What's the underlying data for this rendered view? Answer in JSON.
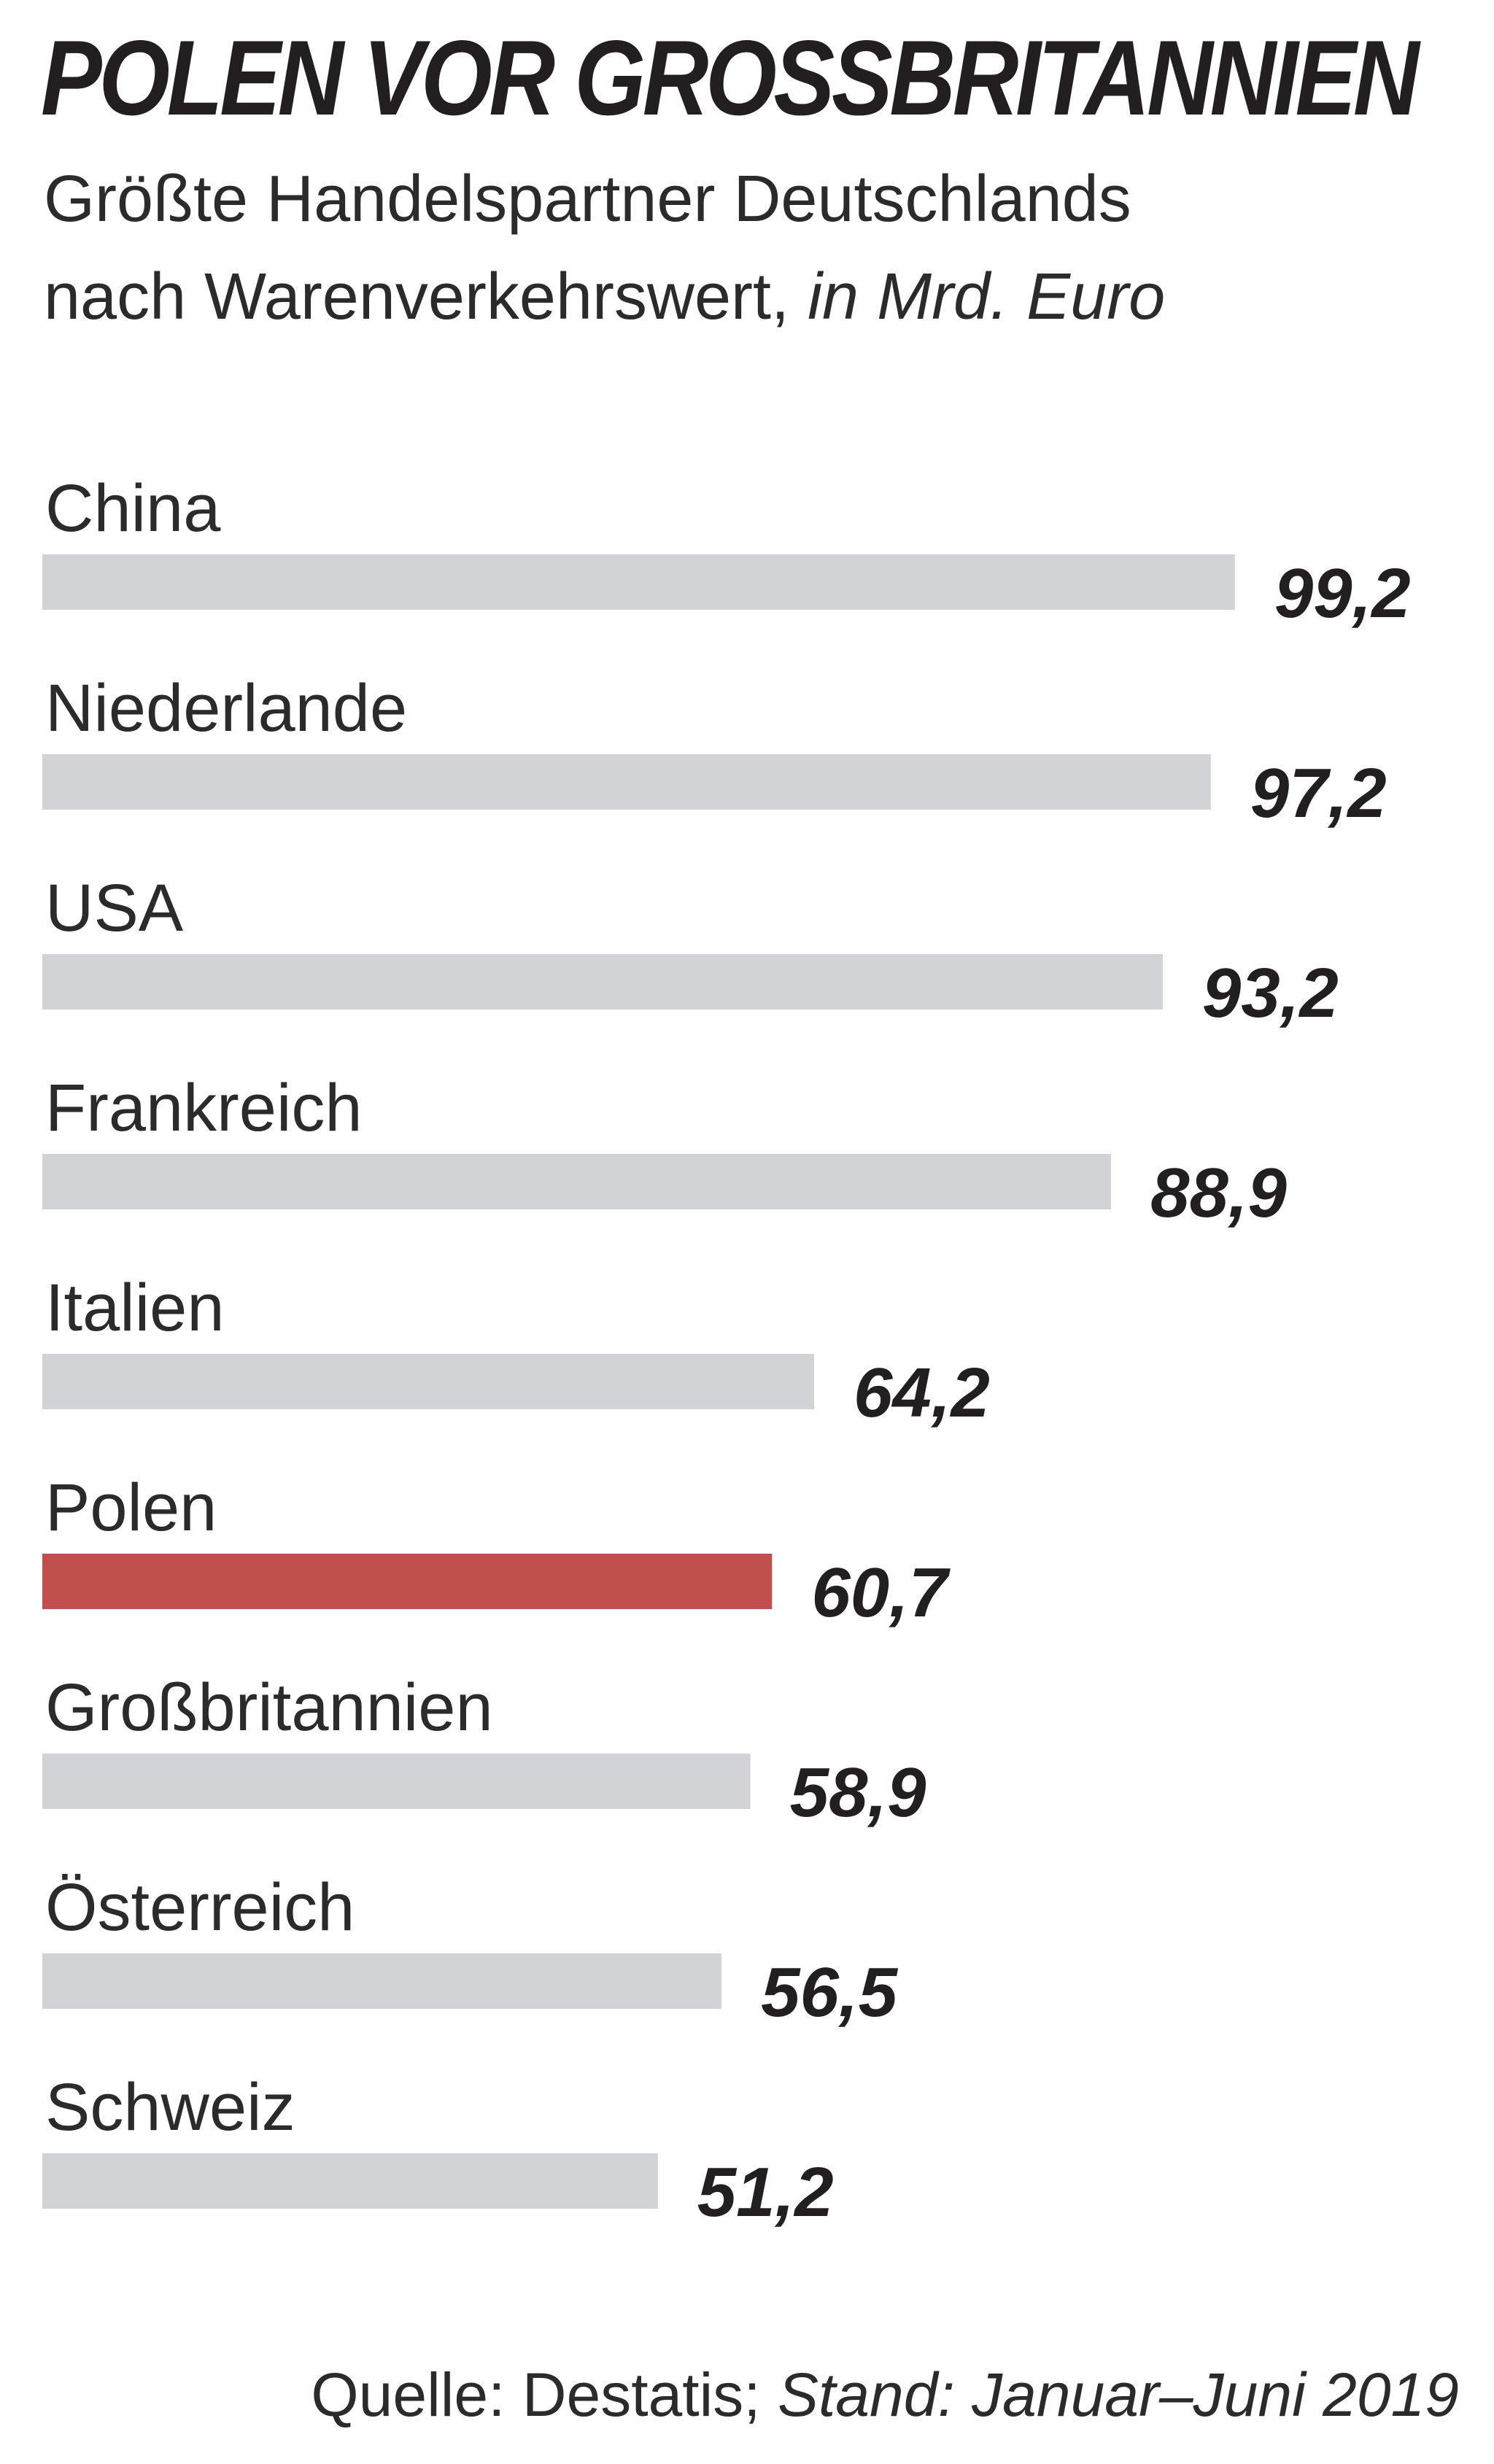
{
  "chart_data": {
    "type": "bar",
    "orientation": "horizontal",
    "title": "POLEN VOR GROSSBRITANNIEN",
    "subtitle_line1": "Größte Handelspartner Deutschlands",
    "subtitle_line2": "nach Warenverkehrswert,",
    "unit": "in Mrd. Euro",
    "categories": [
      "China",
      "Niederlande",
      "USA",
      "Frankreich",
      "Italien",
      "Polen",
      "Großbritannien",
      "Österreich",
      "Schweiz"
    ],
    "values": [
      99.2,
      97.2,
      93.2,
      88.9,
      64.2,
      60.7,
      58.9,
      56.5,
      51.2
    ],
    "value_labels": [
      "99,2",
      "97,2",
      "93,2",
      "88,9",
      "64,2",
      "60,7",
      "58,9",
      "56,5",
      "51,2"
    ],
    "highlight": "Polen",
    "xlim": [
      0,
      100
    ],
    "grid": false,
    "legend": "none",
    "colors": {
      "bar": "#d1d3d6",
      "highlight": "#c0504d",
      "text": "#231f20"
    }
  },
  "source": {
    "text": "Quelle: Destatis;",
    "stand": "Stand: Januar–Juni 2019"
  }
}
